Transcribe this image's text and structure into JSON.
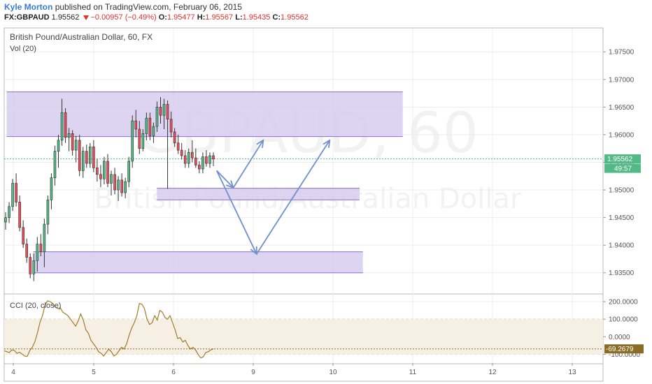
{
  "header": {
    "author": "Kyle Morton",
    "published_text": "published on TradingView.com, February 06, 2015",
    "symbol": "FX:GBPAUD",
    "last": "1.95562",
    "change": "−0.00957 (−0.49%)",
    "o_label": "O:",
    "o_value": "1.95477",
    "h_label": "H:",
    "h_value": "1.95567",
    "l_label": "L:",
    "l_value": "1.95435",
    "c_label": "C:",
    "c_value": "1.95562"
  },
  "main_pane": {
    "title": "British Pound/Australian Dollar, 60, FX",
    "vol_label": "Vol (20)",
    "watermark_symbol": "GBPAUD, 60",
    "watermark_name": "British Pound/Australian Dollar"
  },
  "cci_pane": {
    "title": "CCI (20, close)"
  },
  "price_tag": "1.95562",
  "countdown_tag": "49:57",
  "cci_tag": "-69.2679",
  "colors": {
    "up": "#53b987",
    "down": "#eb4d5c",
    "zone_fill": "#d7cdee",
    "zone_border": "#8b6fc9",
    "arrow": "#6f8fd0",
    "cci_line": "#a07c2c",
    "cci_band": "#f6efe4",
    "price_tag": "#53b987",
    "cci_tag": "#8a6d25",
    "author": "#3a7bd5"
  },
  "chart_data": [
    {
      "type": "candlestick",
      "title": "British Pound/Australian Dollar, 60, FX",
      "x_ticks": [
        "4",
        "5",
        "6",
        "9",
        "10",
        "11",
        "12",
        "13"
      ],
      "y_ticks": [
        "1.97500",
        "1.97000",
        "1.96500",
        "1.96000",
        "1.95500",
        "1.95000",
        "1.94500",
        "1.94000",
        "1.93500"
      ],
      "ylim": [
        1.9313,
        1.9792
      ],
      "last_close": 1.95562,
      "candles": [
        [
          1.9442,
          1.946,
          1.9428,
          1.945
        ],
        [
          1.945,
          1.9478,
          1.944,
          1.947
        ],
        [
          1.947,
          1.952,
          1.9462,
          1.9512
        ],
        [
          1.9512,
          1.953,
          1.947,
          1.9478
        ],
        [
          1.9478,
          1.949,
          1.9425,
          1.9432
        ],
        [
          1.9432,
          1.9445,
          1.9395,
          1.9402
        ],
        [
          1.9402,
          1.9412,
          1.9368,
          1.9378
        ],
        [
          1.9378,
          1.9385,
          1.934,
          1.9348
        ],
        [
          1.9348,
          1.9385,
          1.9335,
          1.9372
        ],
        [
          1.9372,
          1.9415,
          1.9352,
          1.9402
        ],
        [
          1.9402,
          1.942,
          1.938,
          1.9388
        ],
        [
          1.9388,
          1.9448,
          1.936,
          1.9438
        ],
        [
          1.9438,
          1.949,
          1.942,
          1.9482
        ],
        [
          1.9482,
          1.953,
          1.9465,
          1.9522
        ],
        [
          1.9522,
          1.958,
          1.9508,
          1.957
        ],
        [
          1.957,
          1.96,
          1.954,
          1.959
        ],
        [
          1.959,
          1.9665,
          1.958,
          1.964
        ],
        [
          1.964,
          1.9648,
          1.9585,
          1.9595
        ],
        [
          1.9595,
          1.9612,
          1.957,
          1.9602
        ],
        [
          1.9602,
          1.9608,
          1.9562,
          1.9572
        ],
        [
          1.9572,
          1.9598,
          1.955,
          1.959
        ],
        [
          1.959,
          1.96,
          1.9525,
          1.9535
        ],
        [
          1.9535,
          1.9578,
          1.9522,
          1.957
        ],
        [
          1.957,
          1.9582,
          1.954,
          1.9548
        ],
        [
          1.9548,
          1.9585,
          1.954,
          1.9578
        ],
        [
          1.9578,
          1.959,
          1.9532,
          1.954
        ],
        [
          1.954,
          1.9556,
          1.9515,
          1.9528
        ],
        [
          1.9528,
          1.9545,
          1.9505,
          1.952
        ],
        [
          1.952,
          1.956,
          1.951,
          1.9552
        ],
        [
          1.9552,
          1.9565,
          1.9505,
          1.9512
        ],
        [
          1.9512,
          1.9535,
          1.949,
          1.9528
        ],
        [
          1.9528,
          1.954,
          1.9492,
          1.95
        ],
        [
          1.95,
          1.9525,
          1.948,
          1.9518
        ],
        [
          1.9518,
          1.953,
          1.9488,
          1.9495
        ],
        [
          1.9495,
          1.9522,
          1.9485,
          1.9515
        ],
        [
          1.9515,
          1.956,
          1.9505,
          1.9552
        ],
        [
          1.9552,
          1.9635,
          1.954,
          1.9625
        ],
        [
          1.9625,
          1.9645,
          1.9595,
          1.961
        ],
        [
          1.961,
          1.9625,
          1.9565,
          1.9575
        ],
        [
          1.9575,
          1.961,
          1.957,
          1.9602
        ],
        [
          1.9602,
          1.964,
          1.959,
          1.963
        ],
        [
          1.963,
          1.964,
          1.959,
          1.9598
        ],
        [
          1.9598,
          1.9622,
          1.9585,
          1.9615
        ],
        [
          1.9615,
          1.966,
          1.9605,
          1.965
        ],
        [
          1.965,
          1.9668,
          1.962,
          1.9635
        ],
        [
          1.9635,
          1.9665,
          1.961,
          1.9655
        ],
        [
          1.9655,
          1.9662,
          1.9502,
          1.9628
        ],
        [
          1.9628,
          1.9642,
          1.9595,
          1.9605
        ],
        [
          1.9605,
          1.9612,
          1.9578,
          1.9585
        ],
        [
          1.9585,
          1.96,
          1.9565,
          1.9572
        ],
        [
          1.9572,
          1.9585,
          1.9555,
          1.9562
        ],
        [
          1.9562,
          1.9572,
          1.954,
          1.9548
        ],
        [
          1.9548,
          1.9575,
          1.954,
          1.9568
        ],
        [
          1.9568,
          1.959,
          1.955,
          1.9558
        ],
        [
          1.9558,
          1.9575,
          1.954,
          1.9545
        ],
        [
          1.9545,
          1.9552,
          1.953,
          1.9538
        ],
        [
          1.9538,
          1.9568,
          1.953,
          1.956
        ],
        [
          1.956,
          1.9572,
          1.9542,
          1.9548
        ],
        [
          1.9548,
          1.9568,
          1.954,
          1.9562
        ],
        [
          1.9562,
          1.9568,
          1.9543,
          1.9556
        ]
      ],
      "zones": [
        {
          "from": 1.95965,
          "to": 1.96775,
          "x_start": "3 22:00",
          "x_end": "10 21:00"
        },
        {
          "from": 1.9482,
          "to": 1.9503,
          "x_start": "5 19:00",
          "x_end": "10 08:00"
        },
        {
          "from": 1.935,
          "to": 1.9388,
          "x_start": "4 06:00",
          "x_end": "10 09:00"
        }
      ],
      "arrows": [
        {
          "path": [
            [
              "6 13:00",
              1.9535
            ],
            [
              "6 18:00",
              1.9504
            ]
          ]
        },
        {
          "path": [
            [
              "6 18:00",
              1.9504
            ],
            [
              "9 03:00",
              1.959
            ]
          ]
        },
        {
          "path": [
            [
              "6 13:00",
              1.9535
            ],
            [
              "9 01:00",
              1.9384
            ]
          ]
        },
        {
          "path": [
            [
              "9 01:00",
              1.9384
            ],
            [
              "9 23:00",
              1.959
            ]
          ]
        }
      ]
    },
    {
      "type": "line",
      "title": "CCI (20, close)",
      "y_ticks": [
        "200.0000",
        "100.0000",
        "0.0000",
        "-100.0000"
      ],
      "ylim": [
        -150,
        240
      ],
      "band": [
        -100,
        100
      ],
      "last_value": -69.2679,
      "values": [
        -80,
        -85,
        -90,
        -75,
        -78,
        -95,
        -88,
        -98,
        -110,
        -112,
        -80,
        -60,
        -30,
        20,
        80,
        120,
        180,
        205,
        200,
        190,
        170,
        160,
        165,
        140,
        130,
        120,
        100,
        80,
        60,
        90,
        130,
        95,
        40,
        20,
        -20,
        -40,
        -60,
        -85,
        -95,
        -110,
        -90,
        -70,
        -85,
        -110,
        -100,
        -80,
        -60,
        -70,
        -40,
        10,
        50,
        80,
        120,
        190,
        185,
        160,
        100,
        70,
        80,
        120,
        95,
        150,
        140,
        110,
        100,
        120,
        80,
        40,
        -10,
        -5,
        -30,
        -20,
        -50,
        -70,
        -60,
        -75,
        -100,
        -120,
        -115,
        -90,
        -85,
        -75,
        -69
      ]
    }
  ]
}
